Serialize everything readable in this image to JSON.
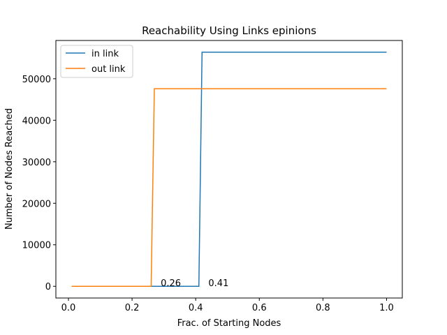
{
  "chart_data": {
    "type": "line",
    "title": "Reachability Using Links epinions",
    "xlabel": "Frac. of Starting Nodes",
    "ylabel": "Number of Nodes Reached",
    "xlim": [
      -0.0395,
      1.0495
    ],
    "ylim": [
      -2820,
      59220
    ],
    "xticks": [
      0.0,
      0.2,
      0.4,
      0.6,
      0.8,
      1.0
    ],
    "xtick_labels": [
      "0.0",
      "0.2",
      "0.4",
      "0.6",
      "0.8",
      "1.0"
    ],
    "yticks": [
      0,
      10000,
      20000,
      30000,
      40000,
      50000
    ],
    "ytick_labels": [
      "0",
      "10000",
      "20000",
      "30000",
      "40000",
      "50000"
    ],
    "grid": false,
    "legend_position": "top-left",
    "series": [
      {
        "name": "in link",
        "color": "#1f77b4",
        "x": [
          0.01,
          0.41,
          0.42,
          1.0
        ],
        "y": [
          0,
          0,
          56400,
          56400
        ]
      },
      {
        "name": "out link",
        "color": "#ff7f0e",
        "x": [
          0.01,
          0.26,
          0.27,
          1.0
        ],
        "y": [
          0,
          0,
          47600,
          47600
        ]
      }
    ],
    "annotations": [
      {
        "text": "0.26",
        "x": 0.29,
        "y": 0
      },
      {
        "text": "0.41",
        "x": 0.44,
        "y": 0
      }
    ]
  }
}
